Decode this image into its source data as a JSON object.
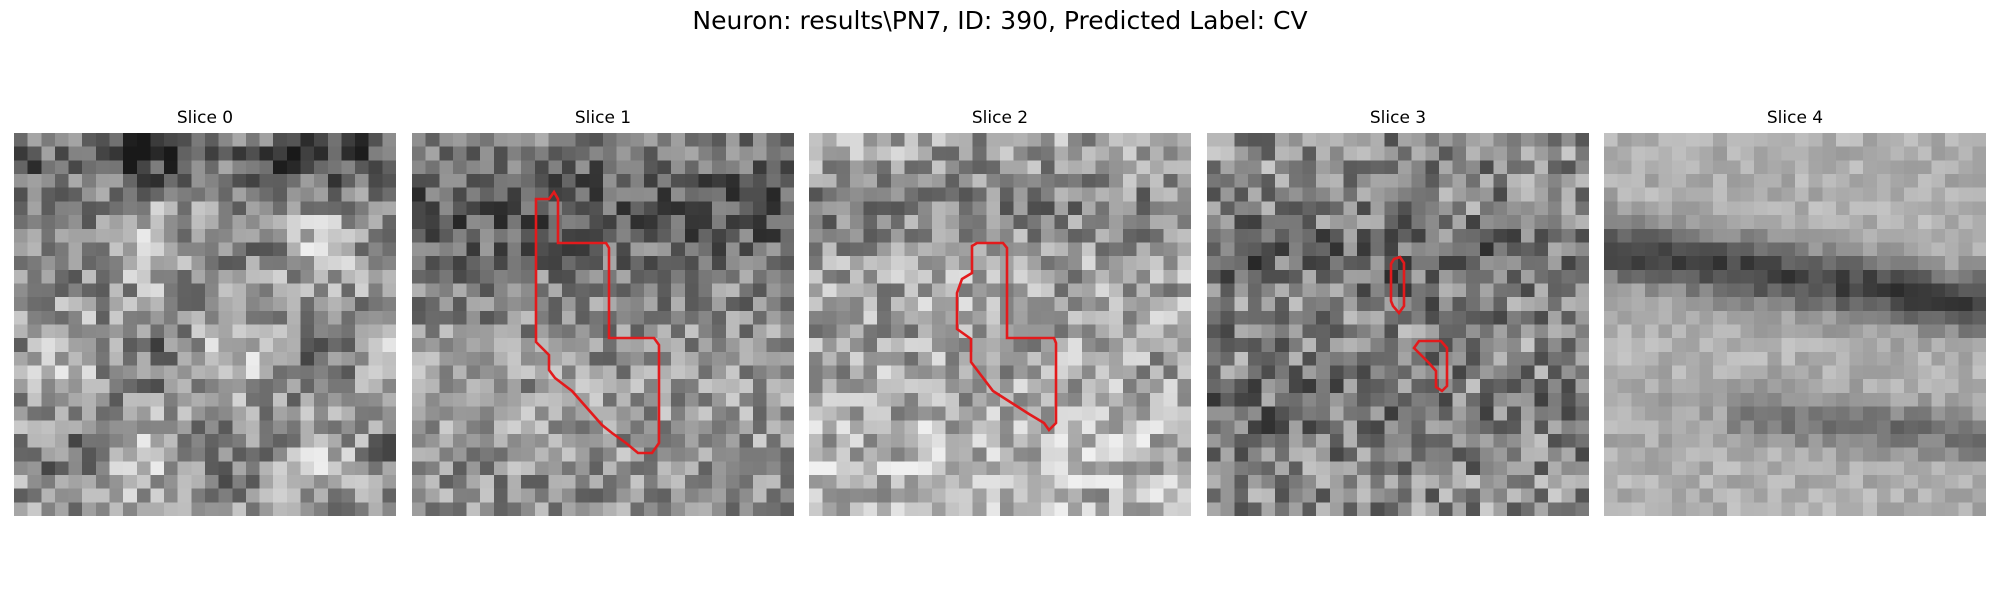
{
  "figure": {
    "title": "Neuron: results\\PN7, ID: 390, Predicted Label: CV"
  },
  "panels": [
    {
      "title": "Slice 0",
      "contours": []
    },
    {
      "title": "Slice 1",
      "contours": [
        1
      ]
    },
    {
      "title": "Slice 2",
      "contours": [
        1
      ]
    },
    {
      "title": "Slice 3",
      "contours": [
        2
      ]
    },
    {
      "title": "Slice 4",
      "contours": []
    }
  ],
  "colors": {
    "background": "#ffffff",
    "contour": "#e31a1c",
    "colormap": "gray"
  }
}
